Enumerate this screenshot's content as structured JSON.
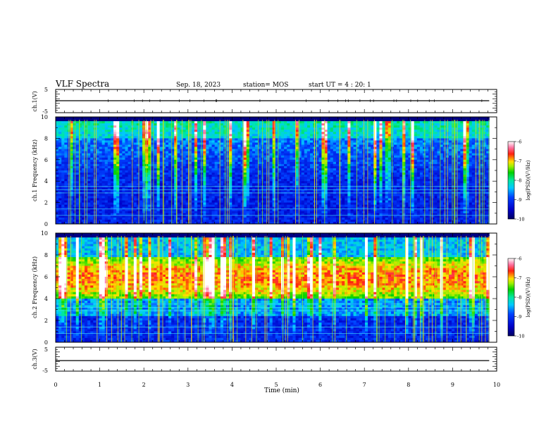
{
  "header": {
    "title": "VLF Spectra",
    "date": "Sep. 18, 2023",
    "station": "station= MOS",
    "start": "start  UT =   4 : 20: 1"
  },
  "chart_data": [
    {
      "type": "line",
      "panel": "ch1-waveform",
      "ylabel": "ch.1(V)",
      "ylim": [
        -5,
        5
      ],
      "yticks": [
        "5",
        "-5"
      ],
      "xlim": [
        0,
        10
      ],
      "series": [
        {
          "x": [
            0,
            9.83
          ],
          "values": [
            0,
            0
          ]
        }
      ]
    },
    {
      "type": "heatmap",
      "panel": "ch1-spectrogram",
      "ylabel": "ch.1 Frequency (kHz)",
      "ylim": [
        0,
        10
      ],
      "yticks": [
        "0",
        "2",
        "4",
        "6",
        "8",
        "10"
      ],
      "xlim": [
        0,
        10
      ],
      "data_end_min": 9.83,
      "colorbar": {
        "label": "log(PSD)(V²/Hz)",
        "range": [
          -10,
          -6
        ],
        "ticks": [
          "-6",
          "-7",
          "-8",
          "-9",
          "-10"
        ]
      }
    },
    {
      "type": "heatmap",
      "panel": "ch2-spectrogram",
      "ylabel": "ch.2 Frequency (kHz)",
      "ylim": [
        0,
        10
      ],
      "yticks": [
        "0",
        "2",
        "4",
        "6",
        "8",
        "10"
      ],
      "xlim": [
        0,
        10
      ],
      "data_end_min": 9.83,
      "colorbar": {
        "label": "log(PSD)(V²/Hz)",
        "range": [
          -10,
          -6
        ],
        "ticks": [
          "-6",
          "-7",
          "-8",
          "-9",
          "-10"
        ]
      }
    },
    {
      "type": "line",
      "panel": "ch3-waveform",
      "ylabel": "ch.3(V)",
      "ylim": [
        -5,
        5
      ],
      "yticks": [
        "5",
        "-5"
      ],
      "xlim": [
        0,
        10
      ],
      "xlabel": "Time  (min)",
      "xticks": [
        "0",
        "1",
        "2",
        "3",
        "4",
        "5",
        "6",
        "7",
        "8",
        "9",
        "10"
      ],
      "series": [
        {
          "x": [
            0,
            9.83
          ],
          "values": [
            0,
            0
          ]
        }
      ]
    }
  ]
}
